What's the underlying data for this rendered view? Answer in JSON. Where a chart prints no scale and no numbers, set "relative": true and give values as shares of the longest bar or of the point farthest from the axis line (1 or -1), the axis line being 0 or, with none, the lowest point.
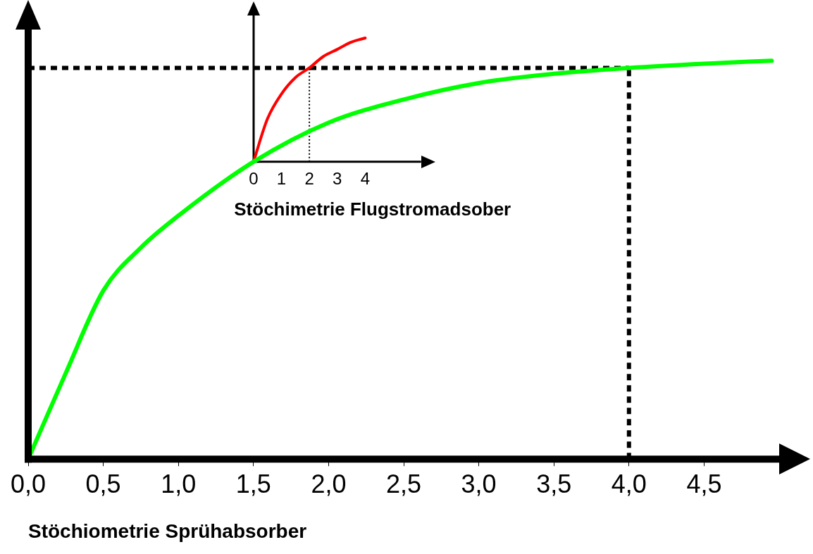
{
  "chart_data": {
    "type": "line",
    "relative": true,
    "xlabel": "Stöchiometrie Sprühabsorber",
    "x2label": "Stöchimetrie Flugstromadsober",
    "xlim": [
      0,
      5.0
    ],
    "xticks": [
      {
        "value": 0,
        "label": "0,0"
      },
      {
        "value": 0.5,
        "label": "0,5"
      },
      {
        "value": 1,
        "label": "1,0"
      },
      {
        "value": 1.5,
        "label": "1,5"
      },
      {
        "value": 2,
        "label": "2,0"
      },
      {
        "value": 2.5,
        "label": "2,5"
      },
      {
        "value": 3,
        "label": "3,0"
      },
      {
        "value": 3.5,
        "label": "3,5"
      },
      {
        "value": 4,
        "label": "4,0"
      },
      {
        "value": 4.5,
        "label": "4,5"
      }
    ],
    "x2lim": [
      0,
      6
    ],
    "x2ticks": [
      0,
      1,
      2,
      3,
      4
    ],
    "series": [
      {
        "color": "#00ff00",
        "x": [
          0,
          0.25,
          0.5,
          0.75,
          1,
          1.5,
          2,
          2.5,
          3,
          3.5,
          4,
          4.5,
          4.95
        ],
        "values": [
          0,
          0.204,
          0.4,
          0.502,
          0.578,
          0.706,
          0.799,
          0.854,
          0.893,
          0.915,
          0.929,
          0.939,
          0.946
        ]
      },
      {
        "color": "#ff0000",
        "axis": "x2",
        "x": [
          0,
          0.5,
          1,
          1.5,
          2,
          2.5,
          3,
          3.5,
          4
        ],
        "values": [
          0.706,
          0.808,
          0.867,
          0.906,
          0.929,
          0.956,
          0.973,
          0.99,
          1
        ]
      }
    ],
    "ref_lines": [
      {
        "axis": "y",
        "value": 0.929,
        "line_style": "dashed"
      },
      {
        "axis": "x",
        "value": 4,
        "line_style": "dashed"
      },
      {
        "axis": "x2",
        "value": 2,
        "line_style": "dotted"
      }
    ],
    "grid": false,
    "legend": false,
    "marker": "none",
    "line_style": "solid"
  }
}
